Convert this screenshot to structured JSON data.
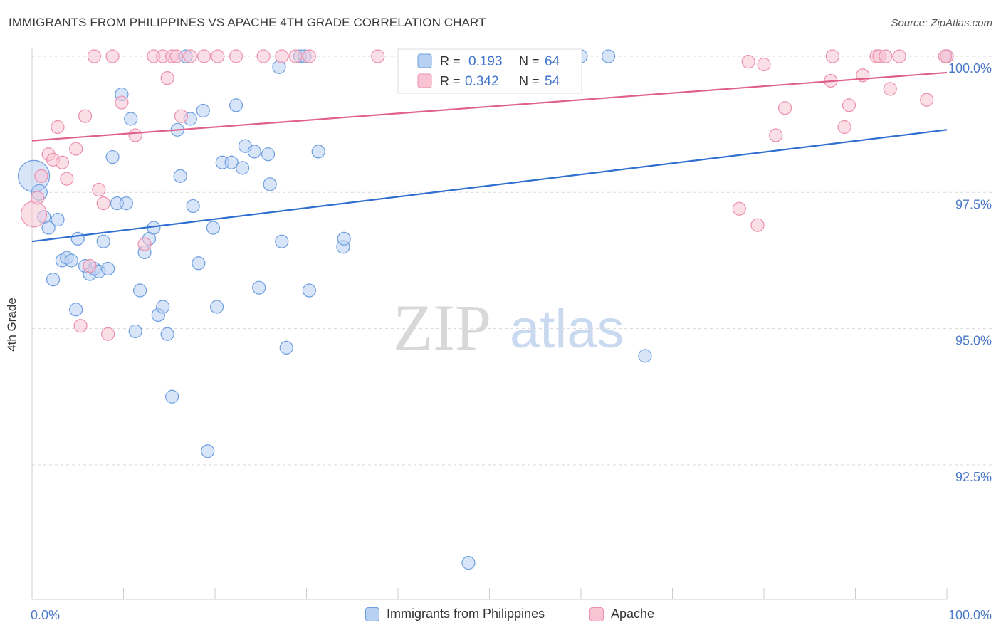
{
  "header": {
    "title": "IMMIGRANTS FROM PHILIPPINES VS APACHE 4TH GRADE CORRELATION CHART",
    "source": "Source: ZipAtlas.com"
  },
  "watermark": {
    "zip": "ZIP",
    "atlas": "atlas"
  },
  "legend_top": {
    "rows": [
      {
        "r_label": "R =",
        "r_value": "0.193",
        "n_label": "N =",
        "n_value": "64"
      },
      {
        "r_label": "R =",
        "r_value": "0.342",
        "n_label": "N =",
        "n_value": "54"
      }
    ]
  },
  "legend_bottom": {
    "items": [
      "Immigrants from Philippines",
      "Apache"
    ]
  },
  "colors": {
    "blue_fill": "#b8d0f2",
    "blue_stroke": "#6d9ee0",
    "blue_line": "#2f6fcf",
    "pink_fill": "#f8c4d4",
    "pink_stroke": "#ec8fad",
    "pink_line": "#e0608a",
    "tick_label": "#4a78c9",
    "grid": "#d9d9d9"
  },
  "chart_data": {
    "type": "scatter",
    "title": "IMMIGRANTS FROM PHILIPPINES VS APACHE 4TH GRADE CORRELATION CHART",
    "xlabel": "",
    "ylabel": "4th Grade",
    "xlim": [
      0,
      100
    ],
    "ylim": [
      90.2,
      100.4
    ],
    "x_tick_labels": [
      "0.0%",
      "100.0%"
    ],
    "y_ticks": [
      92.5,
      95.0,
      97.5,
      100.0
    ],
    "y_tick_labels": [
      "92.5%",
      "95.0%",
      "97.5%",
      "100.0%"
    ],
    "grid": "horizontal dashed",
    "legend_position": "top-center",
    "series": [
      {
        "name": "Immigrants from Philippines",
        "r": 0.193,
        "n": 64,
        "trend": {
          "x": [
            0,
            100
          ],
          "y": [
            96.6,
            98.65
          ]
        },
        "points": [
          [
            0.2,
            97.8,
            22
          ],
          [
            0.8,
            97.5,
            11
          ],
          [
            1.3,
            97.05,
            9
          ],
          [
            1.8,
            96.85,
            9
          ],
          [
            2.3,
            95.9,
            9
          ],
          [
            2.8,
            97.0,
            9
          ],
          [
            3.3,
            96.25,
            9
          ],
          [
            3.8,
            96.3,
            9
          ],
          [
            4.3,
            96.25,
            9
          ],
          [
            4.8,
            95.35,
            9
          ],
          [
            5.0,
            96.65,
            9
          ],
          [
            5.8,
            96.15,
            9
          ],
          [
            6.3,
            96.0,
            9
          ],
          [
            6.8,
            96.1,
            9
          ],
          [
            7.3,
            96.05,
            9
          ],
          [
            7.8,
            96.6,
            9
          ],
          [
            8.3,
            96.1,
            9
          ],
          [
            8.8,
            98.15,
            9
          ],
          [
            9.3,
            97.3,
            9
          ],
          [
            9.8,
            99.3,
            9
          ],
          [
            10.3,
            97.3,
            9
          ],
          [
            10.8,
            98.85,
            9
          ],
          [
            11.3,
            94.95,
            9
          ],
          [
            11.8,
            95.7,
            9
          ],
          [
            12.3,
            96.4,
            9
          ],
          [
            12.8,
            96.65,
            9
          ],
          [
            13.3,
            96.85,
            9
          ],
          [
            13.8,
            95.25,
            9
          ],
          [
            14.3,
            95.4,
            9
          ],
          [
            14.8,
            94.9,
            9
          ],
          [
            15.3,
            93.75,
            9
          ],
          [
            15.9,
            98.65,
            9
          ],
          [
            16.2,
            97.8,
            9
          ],
          [
            16.8,
            100.0,
            9
          ],
          [
            17.3,
            98.85,
            9
          ],
          [
            17.6,
            97.25,
            9
          ],
          [
            18.2,
            96.2,
            9
          ],
          [
            18.7,
            99.0,
            9
          ],
          [
            19.2,
            92.75,
            9
          ],
          [
            19.8,
            96.85,
            9
          ],
          [
            20.2,
            95.4,
            9
          ],
          [
            20.8,
            98.05,
            9
          ],
          [
            21.8,
            98.05,
            9
          ],
          [
            22.3,
            99.1,
            9
          ],
          [
            23.0,
            97.95,
            9
          ],
          [
            23.3,
            98.35,
            9
          ],
          [
            24.3,
            98.25,
            9
          ],
          [
            24.8,
            95.75,
            9
          ],
          [
            25.8,
            98.2,
            9
          ],
          [
            26.0,
            97.65,
            9
          ],
          [
            27.0,
            99.8,
            9
          ],
          [
            27.3,
            96.6,
            9
          ],
          [
            27.8,
            94.65,
            9
          ],
          [
            29.3,
            100.0,
            9
          ],
          [
            29.8,
            100.0,
            9
          ],
          [
            30.3,
            95.7,
            9
          ],
          [
            31.3,
            98.25,
            9
          ],
          [
            34.0,
            96.5,
            9
          ],
          [
            34.1,
            96.65,
            9
          ],
          [
            47.7,
            90.7,
            9
          ],
          [
            60.0,
            100.0,
            9
          ],
          [
            63.0,
            100.0,
            9
          ],
          [
            67.0,
            94.5,
            9
          ],
          [
            100.0,
            100.0,
            9
          ]
        ]
      },
      {
        "name": "Apache",
        "r": 0.342,
        "n": 54,
        "trend": {
          "x": [
            0,
            100
          ],
          "y": [
            98.45,
            99.7
          ]
        },
        "points": [
          [
            0.2,
            97.1,
            18
          ],
          [
            0.6,
            97.4,
            9
          ],
          [
            1.0,
            97.8,
            9
          ],
          [
            1.8,
            98.2,
            9
          ],
          [
            2.3,
            98.1,
            9
          ],
          [
            2.8,
            98.7,
            9
          ],
          [
            3.3,
            98.05,
            9
          ],
          [
            3.8,
            97.75,
            9
          ],
          [
            4.8,
            98.3,
            9
          ],
          [
            5.3,
            95.05,
            9
          ],
          [
            5.8,
            98.9,
            9
          ],
          [
            6.3,
            96.15,
            9
          ],
          [
            6.8,
            100.0,
            9
          ],
          [
            7.3,
            97.55,
            9
          ],
          [
            7.8,
            97.3,
            9
          ],
          [
            8.3,
            94.9,
            9
          ],
          [
            8.8,
            100.0,
            9
          ],
          [
            9.8,
            99.15,
            9
          ],
          [
            11.3,
            98.55,
            9
          ],
          [
            12.3,
            96.55,
            9
          ],
          [
            13.3,
            100.0,
            9
          ],
          [
            14.3,
            100.0,
            9
          ],
          [
            14.8,
            99.6,
            9
          ],
          [
            15.3,
            100.0,
            9
          ],
          [
            15.8,
            100.0,
            9
          ],
          [
            16.3,
            98.9,
            9
          ],
          [
            17.3,
            100.0,
            9
          ],
          [
            18.8,
            100.0,
            9
          ],
          [
            20.3,
            100.0,
            9
          ],
          [
            22.3,
            100.0,
            9
          ],
          [
            25.3,
            100.0,
            9
          ],
          [
            27.3,
            100.0,
            9
          ],
          [
            28.8,
            100.0,
            9
          ],
          [
            30.3,
            100.0,
            9
          ],
          [
            37.8,
            100.0,
            9
          ],
          [
            77.3,
            97.2,
            9
          ],
          [
            78.3,
            99.9,
            9
          ],
          [
            79.3,
            96.9,
            9
          ],
          [
            80.0,
            99.85,
            9
          ],
          [
            81.3,
            98.55,
            9
          ],
          [
            82.3,
            99.05,
            9
          ],
          [
            87.3,
            99.55,
            9
          ],
          [
            87.5,
            100.0,
            9
          ],
          [
            88.8,
            98.7,
            9
          ],
          [
            89.3,
            99.1,
            9
          ],
          [
            90.8,
            99.65,
            9
          ],
          [
            92.3,
            100.0,
            9
          ],
          [
            92.6,
            100.0,
            9
          ],
          [
            93.3,
            100.0,
            9
          ],
          [
            93.8,
            99.4,
            9
          ],
          [
            94.8,
            100.0,
            9
          ],
          [
            97.8,
            99.2,
            9
          ],
          [
            100.0,
            100.0,
            9
          ],
          [
            99.8,
            100.0,
            9
          ]
        ]
      }
    ]
  }
}
